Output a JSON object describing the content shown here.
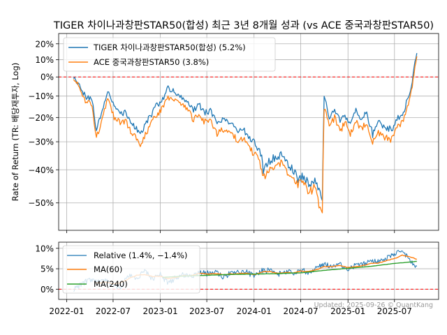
{
  "footer": "Updated: 2025-09-26 © QuantKang",
  "chart_data": [
    {
      "type": "line",
      "title": "TIGER 차이나과창판STAR50(합성) 최근 3년 8개월 성과 (vs ACE 중국과창판STAR50)",
      "ylabel": "Rate of Return (TR: 배당재투자, Log)",
      "yscale": "log(1+r)",
      "grid": true,
      "legend_position": "top-left",
      "reference_line": 0,
      "ylim": [
        -57,
        27
      ],
      "yticks": [
        20,
        10,
        0,
        -10,
        -20,
        -30,
        -40,
        -50
      ],
      "ytick_labels": [
        "20%",
        "10%",
        "0%",
        "−10%",
        "−20%",
        "−30%",
        "−40%",
        "−50%"
      ],
      "series": [
        {
          "name": "TIGER 차이나과창판STAR50(합성)",
          "legend": "TIGER 차이나과창판STAR50(합성) (5.2%)",
          "color": "#1f77b4",
          "x": [
            "2022-01-28",
            "2022-02-20",
            "2022-03-15",
            "2022-04-10",
            "2022-04-27",
            "2022-05-20",
            "2022-06-10",
            "2022-07-05",
            "2022-07-25",
            "2022-08-20",
            "2022-09-15",
            "2022-10-15",
            "2022-10-31",
            "2022-11-20",
            "2022-12-15",
            "2023-01-10",
            "2023-01-31",
            "2023-02-20",
            "2023-03-15",
            "2023-04-15",
            "2023-05-10",
            "2023-05-31",
            "2023-06-20",
            "2023-07-15",
            "2023-08-10",
            "2023-08-31",
            "2023-09-20",
            "2023-10-15",
            "2023-10-31",
            "2023-11-20",
            "2023-12-15",
            "2024-01-10",
            "2024-01-31",
            "2024-02-06",
            "2024-02-28",
            "2024-03-20",
            "2024-04-15",
            "2024-05-10",
            "2024-05-31",
            "2024-06-20",
            "2024-07-10",
            "2024-08-05",
            "2024-08-25",
            "2024-09-10",
            "2024-09-23",
            "2024-09-30",
            "2024-10-08",
            "2024-10-20",
            "2024-11-10",
            "2024-12-01",
            "2024-12-20",
            "2025-01-10",
            "2025-02-01",
            "2025-02-20",
            "2025-03-15",
            "2025-04-07",
            "2025-04-25",
            "2025-05-20",
            "2025-06-20",
            "2025-07-15",
            "2025-08-05",
            "2025-08-20",
            "2025-09-05",
            "2025-09-15",
            "2025-09-26"
          ],
          "values": [
            0,
            -5,
            -10,
            -12,
            -26,
            -16,
            -8,
            -15,
            -18,
            -18,
            -23,
            -27,
            -24,
            -20,
            -15,
            -12,
            -6,
            -7,
            -10,
            -12,
            -17,
            -14,
            -18,
            -17,
            -23,
            -21,
            -22,
            -24,
            -26,
            -25,
            -29,
            -31,
            -36,
            -40,
            -37,
            -36,
            -35,
            -38,
            -40,
            -43,
            -42,
            -45,
            -43,
            -47,
            -50,
            -11,
            -14,
            -20,
            -16,
            -22,
            -19,
            -23,
            -17,
            -21,
            -18,
            -27,
            -22,
            -24,
            -25,
            -20,
            -18,
            -12,
            -5,
            5,
            14
          ]
        },
        {
          "name": "ACE 중국과창판STAR50",
          "legend": "ACE 중국과창판STAR50 (3.8%)",
          "color": "#ff7f0e",
          "x": [
            "2022-01-28",
            "2022-02-20",
            "2022-03-15",
            "2022-04-10",
            "2022-04-27",
            "2022-05-20",
            "2022-06-10",
            "2022-07-05",
            "2022-07-25",
            "2022-08-20",
            "2022-09-15",
            "2022-10-15",
            "2022-10-31",
            "2022-11-20",
            "2022-12-15",
            "2023-01-10",
            "2023-01-31",
            "2023-02-20",
            "2023-03-15",
            "2023-04-15",
            "2023-05-10",
            "2023-05-31",
            "2023-06-20",
            "2023-07-15",
            "2023-08-10",
            "2023-08-31",
            "2023-09-20",
            "2023-10-15",
            "2023-10-31",
            "2023-11-20",
            "2023-12-15",
            "2024-01-10",
            "2024-01-31",
            "2024-02-06",
            "2024-02-28",
            "2024-03-20",
            "2024-04-15",
            "2024-05-10",
            "2024-05-31",
            "2024-06-20",
            "2024-07-10",
            "2024-08-05",
            "2024-08-25",
            "2024-09-10",
            "2024-09-23",
            "2024-09-30",
            "2024-10-08",
            "2024-10-20",
            "2024-11-10",
            "2024-12-01",
            "2024-12-20",
            "2025-01-10",
            "2025-02-01",
            "2025-02-20",
            "2025-03-15",
            "2025-04-07",
            "2025-04-25",
            "2025-05-20",
            "2025-06-20",
            "2025-07-15",
            "2025-08-05",
            "2025-08-20",
            "2025-09-05",
            "2025-09-15",
            "2025-09-26"
          ],
          "values": [
            0,
            -6,
            -12,
            -15,
            -29,
            -20,
            -12,
            -20,
            -22,
            -22,
            -27,
            -31,
            -28,
            -24,
            -19,
            -16,
            -11,
            -11,
            -14,
            -16,
            -21,
            -18,
            -22,
            -21,
            -27,
            -25,
            -26,
            -28,
            -30,
            -29,
            -33,
            -35,
            -40,
            -43,
            -40,
            -39,
            -38,
            -41,
            -43,
            -45,
            -44,
            -47,
            -45,
            -50,
            -53,
            -16,
            -19,
            -24,
            -20,
            -26,
            -22,
            -27,
            -21,
            -25,
            -22,
            -31,
            -26,
            -28,
            -29,
            -24,
            -21,
            -15,
            -8,
            2,
            12
          ]
        }
      ]
    },
    {
      "type": "line",
      "grid": true,
      "legend_position": "top-left",
      "reference_line": 0,
      "ylim": [
        -2.5,
        11.5
      ],
      "yticks": [
        10,
        5,
        0
      ],
      "ytick_labels": [
        "10%",
        "5%",
        "0%"
      ],
      "xlim": [
        "2021-12-01",
        "2025-12-20"
      ],
      "xticks": [
        "2022-01-01",
        "2022-07-01",
        "2023-01-01",
        "2023-07-01",
        "2024-01-01",
        "2024-07-01",
        "2025-01-01",
        "2025-07-01"
      ],
      "xtick_labels": [
        "2022-01",
        "2022-07",
        "2023-01",
        "2023-07",
        "2024-01",
        "2024-07",
        "2025-01",
        "2025-07"
      ],
      "series": [
        {
          "name": "Relative",
          "legend": "Relative (1.4%, −1.4%)",
          "color": "#1f77b4",
          "x": [
            "2022-01-28",
            "2022-03-01",
            "2022-04-01",
            "2022-05-01",
            "2022-06-01",
            "2022-07-01",
            "2022-08-01",
            "2022-09-01",
            "2022-10-01",
            "2022-11-01",
            "2022-12-01",
            "2023-01-01",
            "2023-02-01",
            "2023-03-01",
            "2023-04-01",
            "2023-05-01",
            "2023-06-01",
            "2023-07-01",
            "2023-08-01",
            "2023-09-01",
            "2023-10-01",
            "2023-11-01",
            "2023-12-01",
            "2024-01-01",
            "2024-02-01",
            "2024-03-01",
            "2024-04-01",
            "2024-05-01",
            "2024-06-01",
            "2024-07-01",
            "2024-08-01",
            "2024-09-01",
            "2024-10-01",
            "2024-11-01",
            "2024-12-01",
            "2025-01-01",
            "2025-02-01",
            "2025-03-01",
            "2025-04-01",
            "2025-05-01",
            "2025-06-01",
            "2025-07-01",
            "2025-08-01",
            "2025-09-01",
            "2025-09-26"
          ],
          "values": [
            0,
            1.2,
            2.5,
            1.8,
            2.2,
            1,
            0.5,
            3.5,
            2.8,
            4.5,
            2.5,
            3.5,
            1.5,
            2.8,
            3.5,
            3.2,
            4.2,
            3.8,
            4.2,
            3,
            3.8,
            4,
            4.2,
            3.2,
            4.5,
            4.5,
            3.6,
            4.4,
            4,
            4.6,
            4.2,
            5.2,
            6,
            5.5,
            6.2,
            5,
            5.8,
            6.2,
            6.8,
            7,
            7.6,
            8.5,
            9.2,
            7,
            5.6
          ]
        },
        {
          "name": "MA(60)",
          "legend": "MA(60)",
          "color": "#ff7f0e",
          "x": [
            "2022-04-20",
            "2022-06-01",
            "2022-07-01",
            "2022-08-01",
            "2022-09-01",
            "2022-10-01",
            "2022-11-01",
            "2022-12-01",
            "2023-01-01",
            "2023-02-01",
            "2023-03-01",
            "2023-04-01",
            "2023-05-01",
            "2023-06-01",
            "2023-07-01",
            "2023-08-01",
            "2023-09-01",
            "2023-10-01",
            "2023-11-01",
            "2023-12-01",
            "2024-01-01",
            "2024-02-01",
            "2024-03-01",
            "2024-04-01",
            "2024-05-01",
            "2024-06-01",
            "2024-07-01",
            "2024-08-01",
            "2024-09-01",
            "2024-10-01",
            "2024-11-01",
            "2024-12-01",
            "2025-01-01",
            "2025-02-01",
            "2025-03-01",
            "2025-04-01",
            "2025-05-01",
            "2025-06-01",
            "2025-07-01",
            "2025-08-01",
            "2025-09-01",
            "2025-09-26"
          ],
          "values": [
            1.5,
            1.7,
            1.3,
            1.6,
            2.6,
            3.4,
            3.6,
            3.1,
            3.2,
            2.6,
            2.9,
            3.3,
            3.3,
            3.9,
            3.7,
            3.8,
            3.6,
            3.7,
            3.8,
            3.9,
            3.5,
            4.2,
            4.3,
            3.9,
            4.1,
            4,
            4.4,
            4.3,
            4.8,
            5.5,
            5.5,
            5.8,
            5.3,
            5.5,
            5.8,
            6.3,
            6.4,
            7,
            7.5,
            8.3,
            7.9,
            7.3
          ]
        },
        {
          "name": "MA(240)",
          "legend": "MA(240)",
          "color": "#2ca02c",
          "x": [
            "2023-01-10",
            "2023-04-01",
            "2023-07-01",
            "2023-10-01",
            "2024-01-01",
            "2024-04-01",
            "2024-07-01",
            "2024-10-01",
            "2025-01-01",
            "2025-04-01",
            "2025-07-01",
            "2025-09-26"
          ],
          "values": [
            2.9,
            3.2,
            3.4,
            3.6,
            3.7,
            3.8,
            4.0,
            4.6,
            5.1,
            5.6,
            6.3,
            6.8
          ]
        }
      ]
    }
  ]
}
